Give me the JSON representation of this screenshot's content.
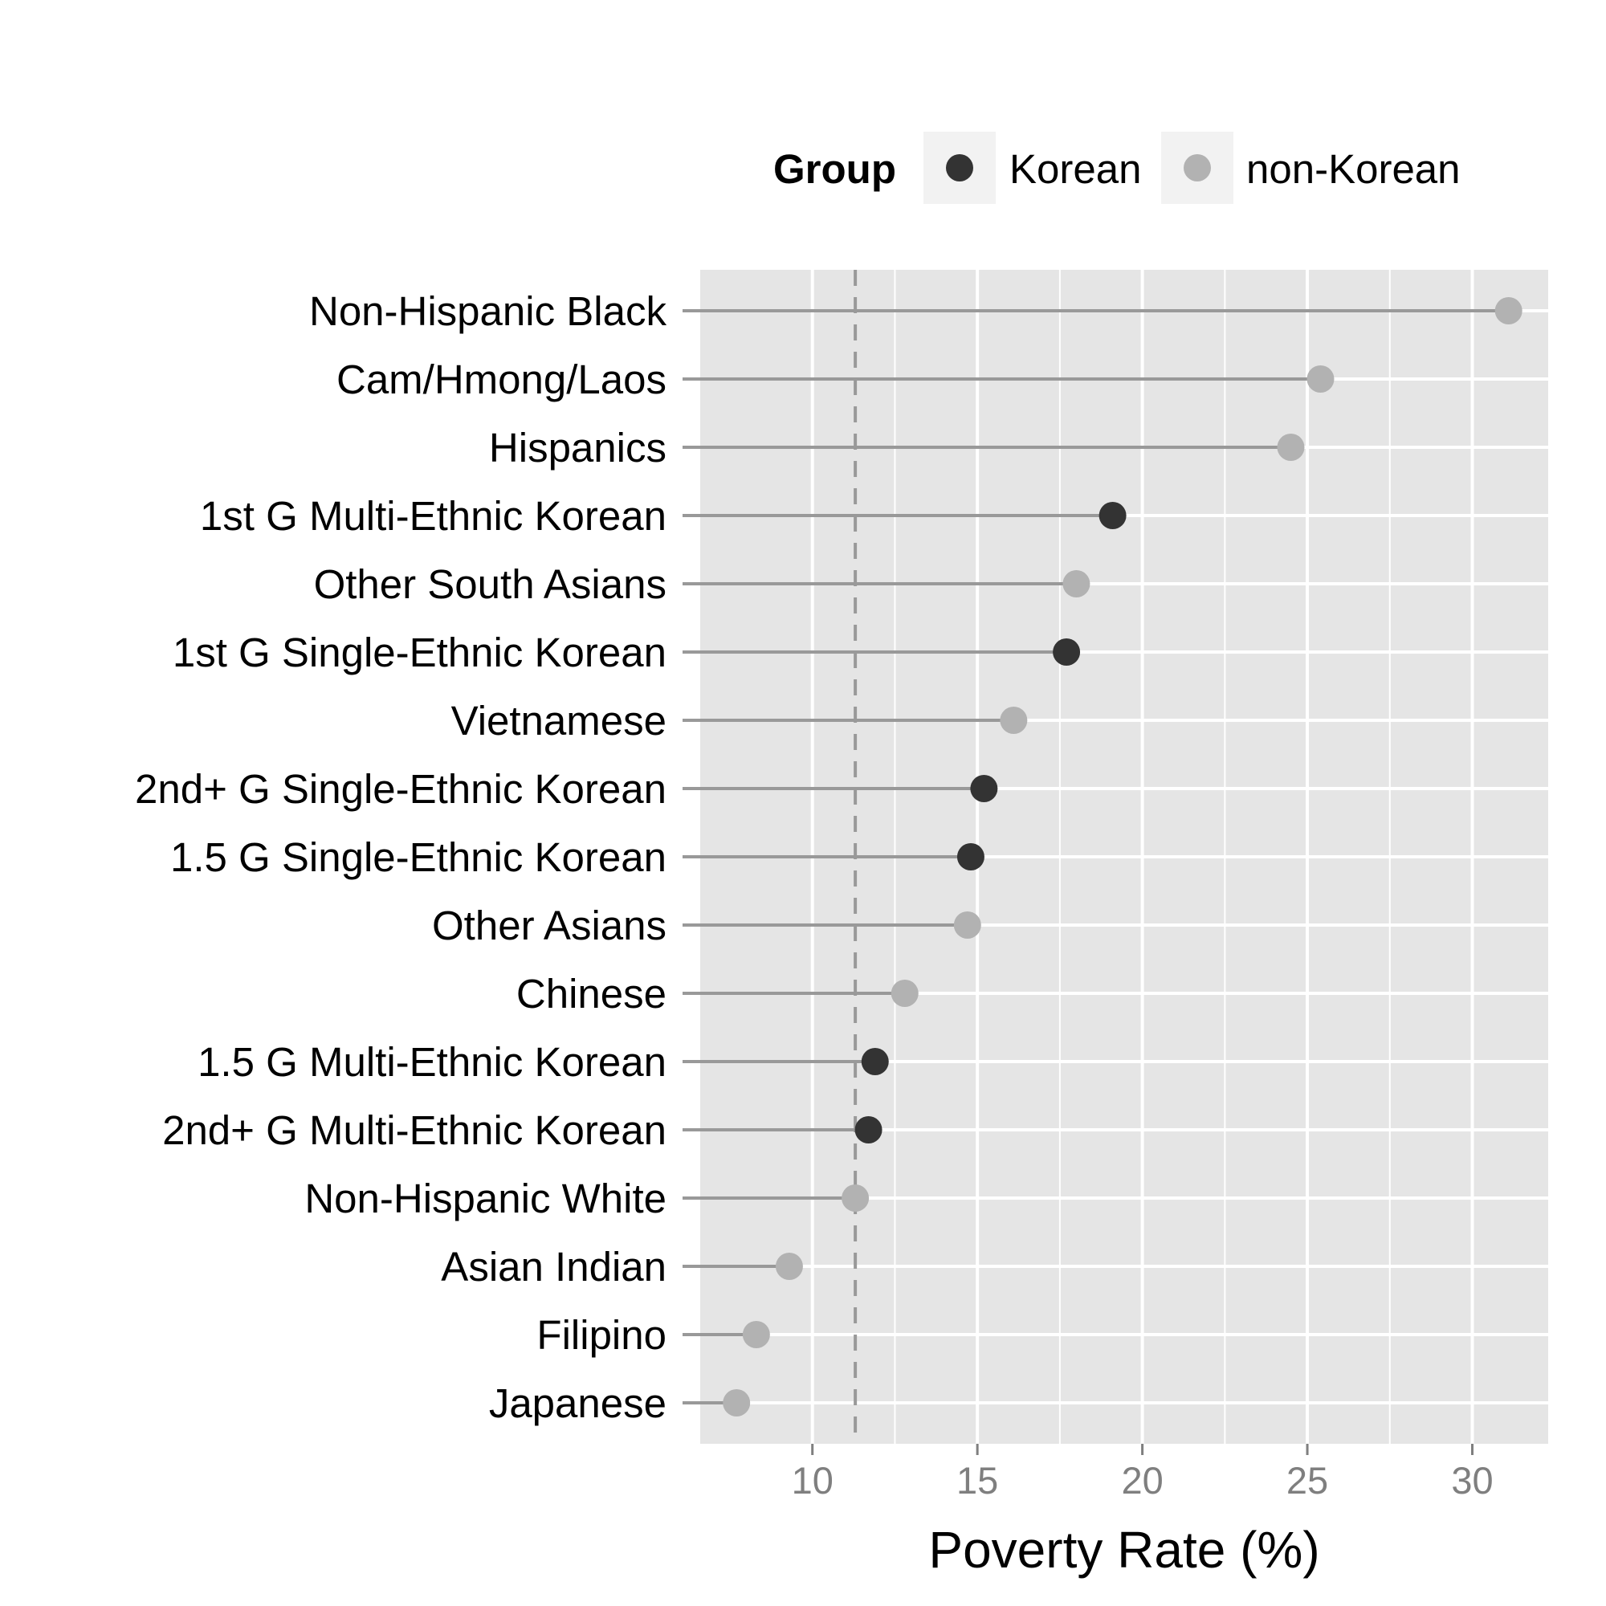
{
  "chart_data": {
    "type": "scatter",
    "style": "lollipop",
    "xlabel": "Poverty Rate (%)",
    "ylabel": "",
    "xlim": [
      6.6,
      32.3
    ],
    "xticks": [
      10,
      15,
      20,
      25,
      30
    ],
    "grid": true,
    "reference_line": {
      "x": 11.3,
      "style": "dashed"
    },
    "legend": {
      "title": "Group",
      "placement": "top",
      "entries": [
        {
          "name": "Korean",
          "color": "#333333"
        },
        {
          "name": "non-Korean",
          "color": "#b2b2b2"
        }
      ]
    },
    "colors": {
      "panel": "#e5e5e5",
      "grid": "#ffffff",
      "stem": "#999999",
      "korean": "#333333",
      "non_korean": "#b2b2b2",
      "tick_text": "#7f7f7f"
    },
    "points": [
      {
        "label": "Non-Hispanic Black",
        "value": 31.1,
        "group": "non-Korean"
      },
      {
        "label": "Cam/Hmong/Laos",
        "value": 25.4,
        "group": "non-Korean"
      },
      {
        "label": "Hispanics",
        "value": 24.5,
        "group": "non-Korean"
      },
      {
        "label": "1st G Multi-Ethnic Korean",
        "value": 19.1,
        "group": "Korean"
      },
      {
        "label": "Other South Asians",
        "value": 18.0,
        "group": "non-Korean"
      },
      {
        "label": "1st G Single-Ethnic Korean",
        "value": 17.7,
        "group": "Korean"
      },
      {
        "label": "Vietnamese",
        "value": 16.1,
        "group": "non-Korean"
      },
      {
        "label": "2nd+ G Single-Ethnic Korean",
        "value": 15.2,
        "group": "Korean"
      },
      {
        "label": "1.5 G Single-Ethnic Korean",
        "value": 14.8,
        "group": "Korean"
      },
      {
        "label": "Other Asians",
        "value": 14.7,
        "group": "non-Korean"
      },
      {
        "label": "Chinese",
        "value": 12.8,
        "group": "non-Korean"
      },
      {
        "label": "1.5 G Multi-Ethnic Korean",
        "value": 11.9,
        "group": "Korean"
      },
      {
        "label": "2nd+ G Multi-Ethnic Korean",
        "value": 11.7,
        "group": "Korean"
      },
      {
        "label": "Non-Hispanic White",
        "value": 11.3,
        "group": "non-Korean"
      },
      {
        "label": "Asian Indian",
        "value": 9.3,
        "group": "non-Korean"
      },
      {
        "label": "Filipino",
        "value": 8.3,
        "group": "non-Korean"
      },
      {
        "label": "Japanese",
        "value": 7.7,
        "group": "non-Korean"
      }
    ]
  }
}
